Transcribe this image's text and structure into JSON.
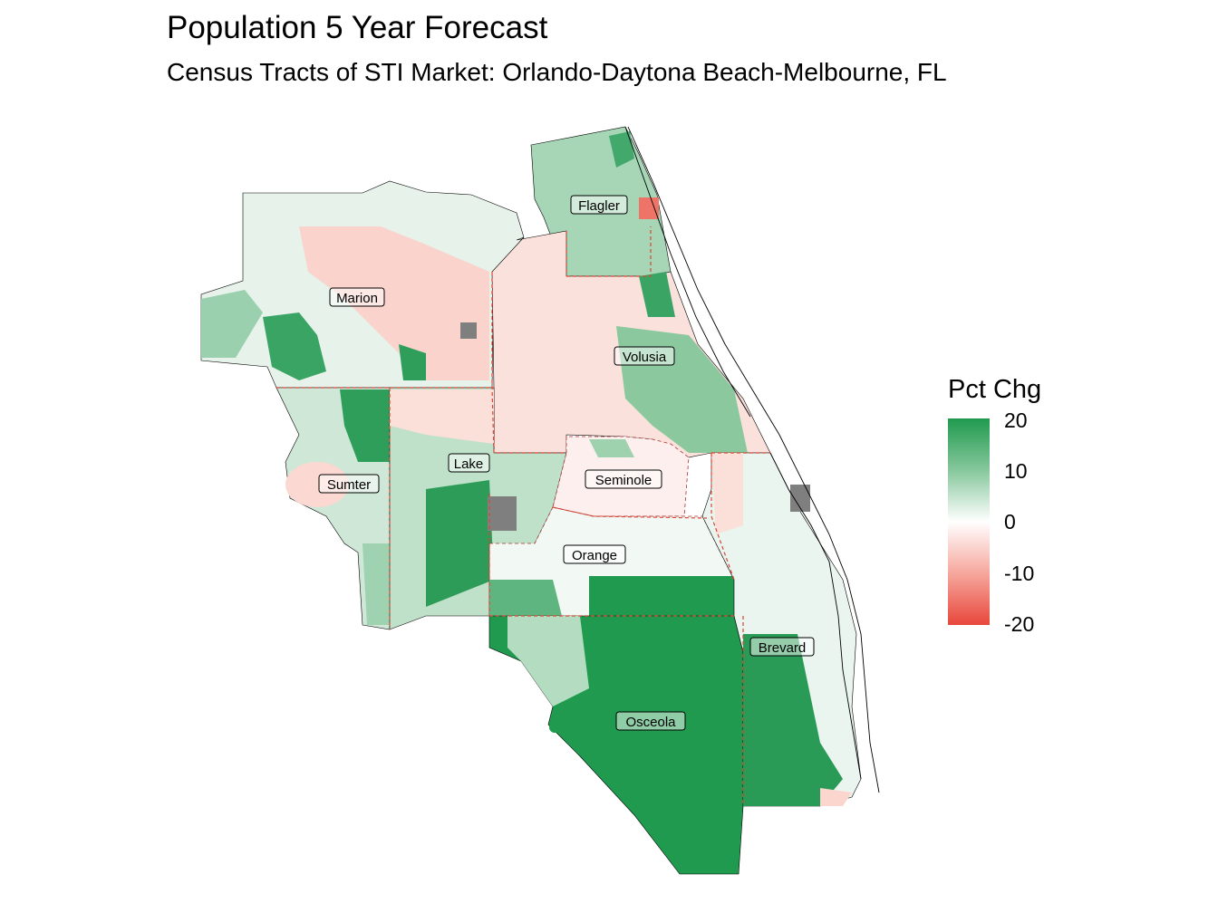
{
  "title": "Population 5 Year Forecast",
  "subtitle": "Census Tracts of STI Market: Orlando-Daytona Beach-Melbourne, FL",
  "legend": {
    "title": "Pct Chg",
    "breaks": [
      "20",
      "10",
      "0",
      "-10",
      "-20"
    ],
    "range": [
      -20,
      20
    ],
    "colors": {
      "high": "#1f9a4e",
      "mid": "#ffffff",
      "low": "#e8473b",
      "missing": "#7f7f7f"
    }
  },
  "counties": [
    {
      "name": "Flagler"
    },
    {
      "name": "Marion"
    },
    {
      "name": "Volusia"
    },
    {
      "name": "Lake"
    },
    {
      "name": "Sumter"
    },
    {
      "name": "Seminole"
    },
    {
      "name": "Orange"
    },
    {
      "name": "Brevard"
    },
    {
      "name": "Osceola"
    }
  ]
}
